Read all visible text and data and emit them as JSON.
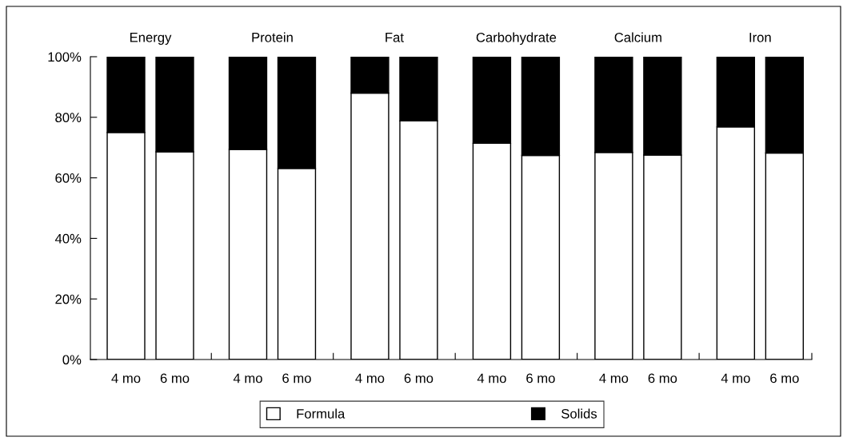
{
  "chart_data": {
    "type": "bar",
    "stacked": true,
    "categories": [
      "4 mo",
      "6 mo",
      "4 mo",
      "6 mo",
      "4 mo",
      "6 mo",
      "4 mo",
      "6 mo",
      "4 mo",
      "6 mo",
      "4 mo",
      "6 mo"
    ],
    "annotations": [
      "Energy",
      "Protein",
      "Fat",
      "Carbohydrate",
      "Calcium",
      "Iron"
    ],
    "series": [
      {
        "name": "Formula",
        "color": "#ffffff",
        "values": [
          75,
          68.6,
          69.4,
          63.1,
          88,
          78.8,
          71.4,
          67.4,
          68.4,
          67.5,
          76.8,
          68.2
        ]
      },
      {
        "name": "Solids",
        "color": "#000000",
        "values": [
          25,
          31.4,
          30.6,
          36.9,
          12,
          21.2,
          28.6,
          32.6,
          31.6,
          32.5,
          23.2,
          31.8
        ]
      }
    ],
    "ylim": [
      0,
      100
    ],
    "yticks": [
      {
        "value": 0,
        "label": "0%"
      },
      {
        "value": 20,
        "label": "20%"
      },
      {
        "value": 40,
        "label": "40%"
      },
      {
        "value": 60,
        "label": "60%"
      },
      {
        "value": 80,
        "label": "80%"
      },
      {
        "value": 100,
        "label": "100%"
      }
    ],
    "grid": false,
    "legend": "bottom"
  }
}
